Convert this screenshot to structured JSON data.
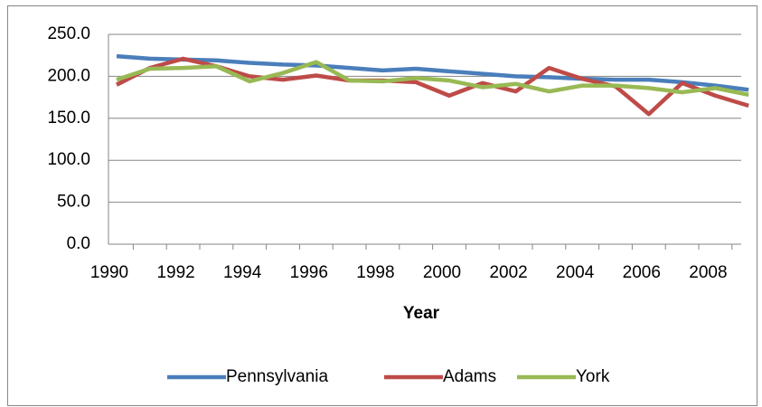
{
  "chart_data": {
    "type": "line",
    "x_label": "Year",
    "categories": [
      "1990",
      null,
      "1992",
      null,
      "1994",
      null,
      "1996",
      null,
      "1998",
      null,
      "2000",
      null,
      "2002",
      null,
      "2004",
      null,
      "2006",
      null,
      "2008",
      null
    ],
    "series": [
      {
        "name": "Pennsylvania",
        "color": "#4a7ebb",
        "values": [
          224,
          221,
          220,
          219,
          216,
          214,
          213,
          210,
          207,
          209,
          206,
          203,
          200,
          199,
          197,
          196,
          196,
          193,
          189,
          184
        ]
      },
      {
        "name": "Adams",
        "color": "#be4b48",
        "values": [
          190,
          210,
          221,
          212,
          200,
          196,
          201,
          195,
          195,
          193,
          177,
          192,
          182,
          210,
          197,
          188,
          155,
          192,
          177,
          165
        ]
      },
      {
        "name": "York",
        "color": "#98b954",
        "values": [
          196,
          209,
          210,
          212,
          194,
          204,
          217,
          195,
          194,
          198,
          195,
          187,
          191,
          182,
          189,
          189,
          186,
          181,
          186,
          178
        ]
      }
    ],
    "ylim": [
      0,
      250
    ],
    "yticks": [
      {
        "value": 0,
        "label": "0.0"
      },
      {
        "value": 50,
        "label": "50.0"
      },
      {
        "value": 100,
        "label": "100.0"
      },
      {
        "value": 150,
        "label": "150.0"
      },
      {
        "value": 200,
        "label": "200.0"
      },
      {
        "value": 250,
        "label": "250.0"
      }
    ],
    "grid": true,
    "legend": "bottom"
  }
}
